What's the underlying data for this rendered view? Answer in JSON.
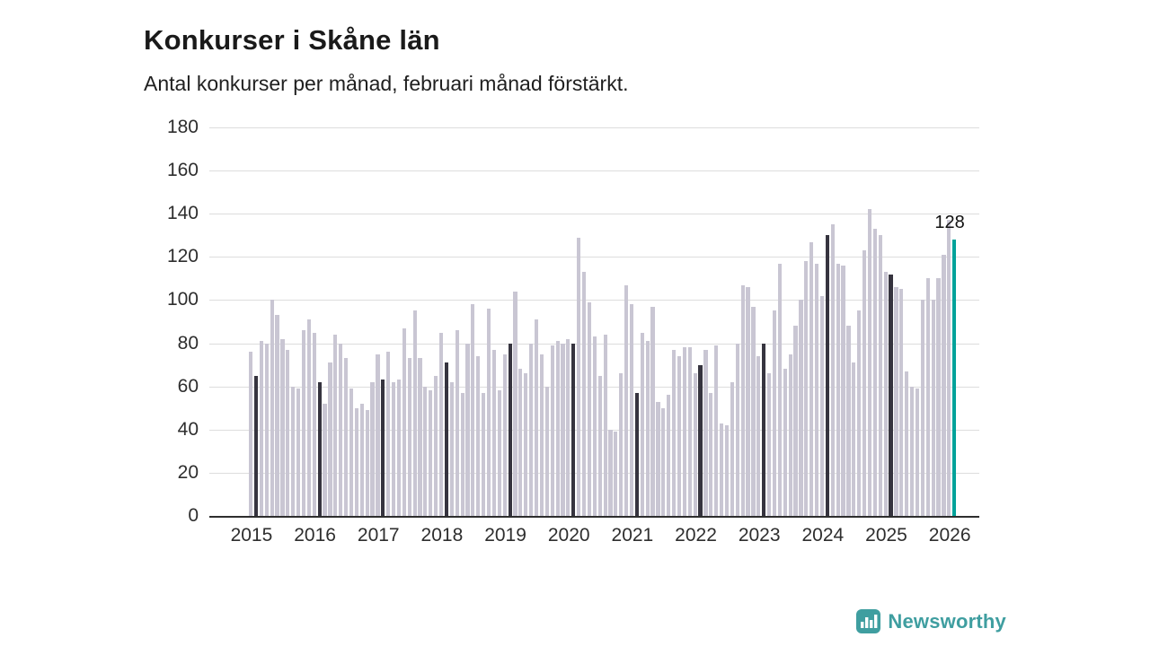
{
  "chart_data": {
    "type": "bar",
    "title": "Konkurser i Skåne län",
    "subtitle": "Antal konkurser per månad, februari månad förstärkt.",
    "ylabel": "",
    "xlabel": "",
    "ylim": [
      0,
      180
    ],
    "yticks": [
      0,
      20,
      40,
      60,
      80,
      100,
      120,
      140,
      160,
      180
    ],
    "grid": "horizontal",
    "start_month": "2015-01",
    "year_labels": [
      "2015",
      "2016",
      "2017",
      "2018",
      "2019",
      "2020",
      "2021",
      "2022",
      "2023",
      "2024",
      "2025",
      "2026"
    ],
    "values": [
      76,
      65,
      81,
      80,
      100,
      93,
      82,
      77,
      60,
      59,
      86,
      91,
      85,
      62,
      52,
      71,
      84,
      80,
      73,
      59,
      50,
      52,
      49,
      62,
      75,
      63,
      76,
      62,
      63,
      87,
      73,
      95,
      73,
      60,
      58,
      65,
      85,
      71,
      62,
      86,
      57,
      80,
      98,
      74,
      57,
      96,
      77,
      58,
      75,
      80,
      104,
      68,
      66,
      80,
      91,
      75,
      60,
      79,
      81,
      80,
      82,
      80,
      129,
      113,
      99,
      83,
      65,
      84,
      40,
      39,
      66,
      107,
      98,
      57,
      85,
      81,
      97,
      53,
      50,
      56,
      77,
      74,
      78,
      78,
      66,
      70,
      77,
      57,
      79,
      43,
      42,
      62,
      80,
      107,
      106,
      97,
      74,
      80,
      66,
      95,
      117,
      68,
      75,
      88,
      100,
      118,
      127,
      117,
      102,
      130,
      135,
      117,
      116,
      88,
      71,
      95,
      123,
      142,
      133,
      130,
      113,
      112,
      106,
      105,
      67,
      60,
      59,
      100,
      110,
      100,
      110,
      121,
      137,
      128
    ],
    "highlight_index": 133,
    "february_rule": "every index where month is February (index % 12 == 1) is emphasized dark",
    "annotation": {
      "label": "128",
      "index": 133
    },
    "colors": {
      "bar": "#c9c6d3",
      "february": "#36343f",
      "highlight": "#00a29a",
      "grid": "#dddddd",
      "axis": "#2e2e2e",
      "text": "#2e2e2e",
      "title": "#1a1a1a"
    }
  },
  "branding": {
    "logo_text": "Newsworthy",
    "logo_color": "#3f9ea0"
  }
}
